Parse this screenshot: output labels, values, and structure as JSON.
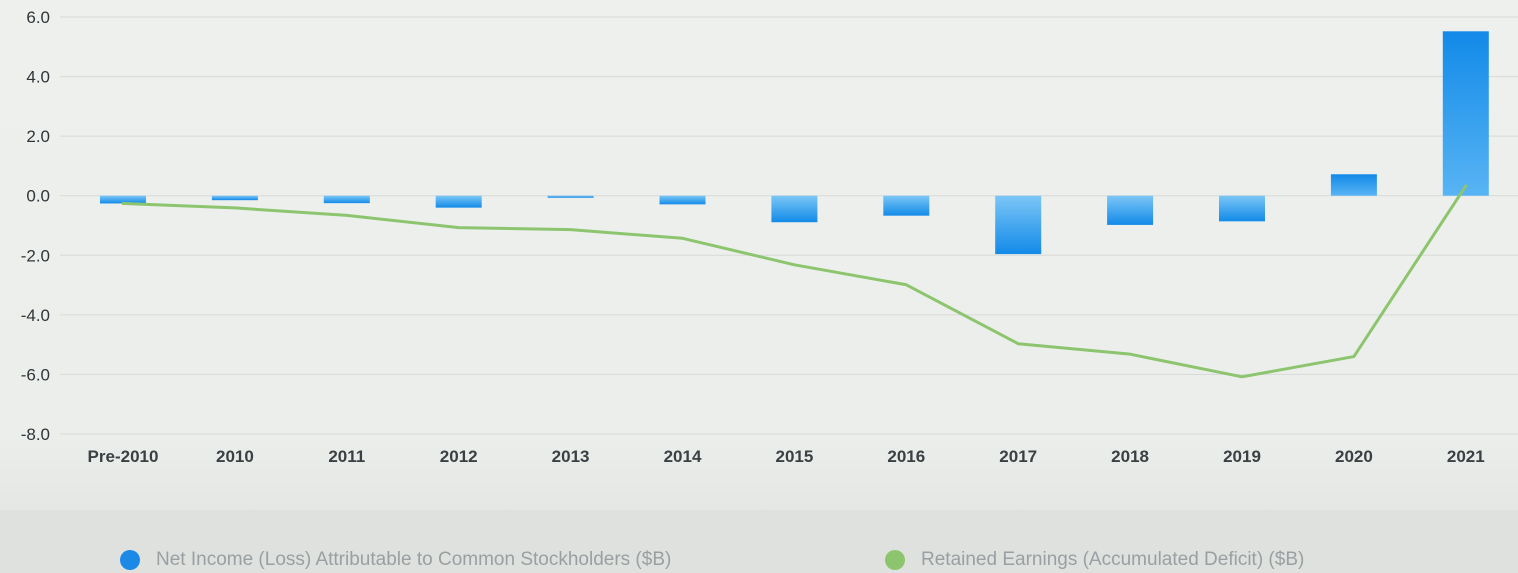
{
  "chart_data": {
    "type": "bar+line",
    "categories": [
      "Pre-2010",
      "2010",
      "2011",
      "2012",
      "2013",
      "2014",
      "2015",
      "2016",
      "2017",
      "2018",
      "2019",
      "2020",
      "2021"
    ],
    "series": [
      {
        "name": "Net Income (Loss) Attributable to Common Stockholders ($B)",
        "type": "bar",
        "color": "#1a8ae6",
        "values": [
          -0.26,
          -0.15,
          -0.25,
          -0.4,
          -0.07,
          -0.29,
          -0.89,
          -0.67,
          -1.96,
          -0.98,
          -0.86,
          0.72,
          5.52
        ]
      },
      {
        "name": "Retained Earnings (Accumulated Deficit) ($B)",
        "type": "line",
        "color": "#8cc56e",
        "values": [
          -0.26,
          -0.41,
          -0.66,
          -1.07,
          -1.14,
          -1.43,
          -2.32,
          -2.99,
          -4.97,
          -5.32,
          -6.08,
          -5.4,
          0.33
        ]
      }
    ],
    "yticks": [
      "6.0",
      "4.0",
      "2.0",
      "0.0",
      "-2.0",
      "-4.0",
      "-6.0",
      "-8.0"
    ],
    "ylim": [
      -8,
      6
    ],
    "grid": true,
    "legend_position": "bottom"
  }
}
